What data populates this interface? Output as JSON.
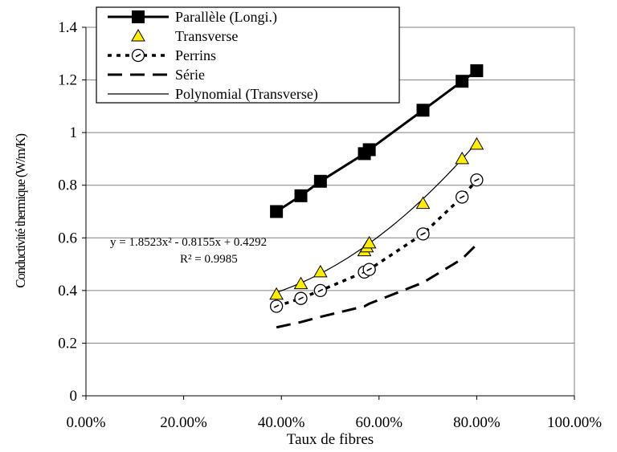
{
  "chart_data": {
    "type": "scatter",
    "title": "",
    "xlabel": "Taux de fibres",
    "ylabel": "Conductivité thermique (W/m/K)",
    "xlim": [
      0,
      1
    ],
    "ylim": [
      0,
      1.4
    ],
    "x_ticks": [
      0,
      0.2,
      0.4,
      0.6,
      0.8,
      1.0
    ],
    "x_tick_labels": [
      "0.00%",
      "20.00%",
      "40.00%",
      "60.00%",
      "80.00%",
      "100.00%"
    ],
    "y_ticks": [
      0,
      0.2,
      0.4,
      0.6,
      0.8,
      1,
      1.2,
      1.4
    ],
    "y_tick_labels": [
      "0",
      "0.2",
      "0.4",
      "0.6",
      "0.8",
      "1",
      "1.2",
      "1.4"
    ],
    "grid": "horizontal",
    "legend_position": "top-left",
    "series": [
      {
        "name": "Parallèle (Longi.)",
        "style": "solid-line-square-markers",
        "color": "#000000",
        "x": [
          0.39,
          0.44,
          0.48,
          0.57,
          0.58,
          0.69,
          0.77,
          0.8
        ],
        "y": [
          0.7,
          0.76,
          0.815,
          0.92,
          0.935,
          1.085,
          1.195,
          1.235
        ]
      },
      {
        "name": "Transverse",
        "style": "triangle-markers",
        "color": "#ffee00",
        "x": [
          0.39,
          0.44,
          0.48,
          0.57,
          0.575,
          0.58,
          0.69,
          0.77,
          0.8
        ],
        "y": [
          0.385,
          0.425,
          0.47,
          0.55,
          0.565,
          0.58,
          0.73,
          0.9,
          0.955
        ]
      },
      {
        "name": "Perrins",
        "style": "dotted-line-circle-markers",
        "color": "#000000",
        "x": [
          0.39,
          0.44,
          0.48,
          0.57,
          0.58,
          0.69,
          0.77,
          0.8
        ],
        "y": [
          0.34,
          0.37,
          0.4,
          0.47,
          0.48,
          0.615,
          0.755,
          0.82
        ]
      },
      {
        "name": "Série",
        "style": "dashed-line",
        "color": "#000000",
        "x": [
          0.39,
          0.44,
          0.48,
          0.57,
          0.58,
          0.69,
          0.77,
          0.8
        ],
        "y": [
          0.26,
          0.28,
          0.3,
          0.34,
          0.35,
          0.43,
          0.52,
          0.575
        ]
      },
      {
        "name": "Polynomial (Transverse)",
        "style": "thin-solid-line",
        "color": "#000000",
        "coefficients": [
          1.8523,
          -0.8155,
          0.4292
        ],
        "x_range": [
          0.39,
          0.8
        ]
      }
    ],
    "annotations": {
      "equation": "y = 1.8523x² - 0.8155x + 0.4292",
      "r_squared": "R² = 0.9985"
    }
  }
}
